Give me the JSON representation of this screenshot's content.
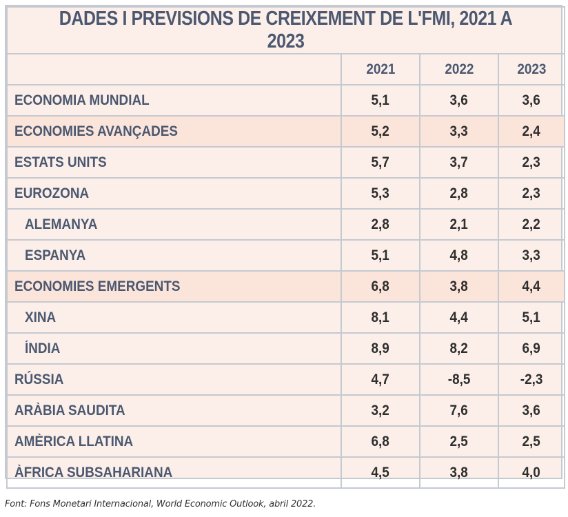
{
  "chart_data": {
    "type": "table",
    "title": "DADES I PREVISIONS DE CREIXEMENT DE L'FMI, 2021 A 2023",
    "columns": [
      "2021",
      "2022",
      "2023"
    ],
    "rows": [
      {
        "label": "ECONOMIA MUNDIAL",
        "indent": false,
        "highlight": false,
        "values": [
          "5,1",
          "3,6",
          "3,6"
        ]
      },
      {
        "label": "ECONOMIES AVANÇADES",
        "indent": false,
        "highlight": true,
        "values": [
          "5,2",
          "3,3",
          "2,4"
        ]
      },
      {
        "label": "ESTATS UNITS",
        "indent": false,
        "highlight": false,
        "values": [
          "5,7",
          "3,7",
          "2,3"
        ]
      },
      {
        "label": "EUROZONA",
        "indent": false,
        "highlight": false,
        "values": [
          "5,3",
          "2,8",
          "2,3"
        ]
      },
      {
        "label": "ALEMANYA",
        "indent": true,
        "highlight": false,
        "values": [
          "2,8",
          "2,1",
          "2,2"
        ]
      },
      {
        "label": "ESPANYA",
        "indent": true,
        "highlight": false,
        "values": [
          "5,1",
          "4,8",
          "3,3"
        ]
      },
      {
        "label": "ECONOMIES EMERGENTS",
        "indent": false,
        "highlight": true,
        "values": [
          "6,8",
          "3,8",
          "4,4"
        ]
      },
      {
        "label": "XINA",
        "indent": true,
        "highlight": false,
        "values": [
          "8,1",
          "4,4",
          "5,1"
        ]
      },
      {
        "label": "ÍNDIA",
        "indent": true,
        "highlight": false,
        "values": [
          "8,9",
          "8,2",
          "6,9"
        ]
      },
      {
        "label": "RÚSSIA",
        "indent": false,
        "highlight": false,
        "values": [
          "4,7",
          "-8,5",
          "-2,3"
        ]
      },
      {
        "label": "ARÀBIA SAUDITA",
        "indent": false,
        "highlight": false,
        "values": [
          "3,2",
          "7,6",
          "3,6"
        ]
      },
      {
        "label": "AMÈRICA LLATINA",
        "indent": false,
        "highlight": false,
        "values": [
          "6,8",
          "2,5",
          "2,5"
        ]
      },
      {
        "label": "ÀFRICA SUBSAHARIANA",
        "indent": false,
        "highlight": false,
        "values": [
          "4,5",
          "3,8",
          "4,0"
        ]
      }
    ],
    "source": "Font: Fons Monetari Internacional, World Economic Outlook, abril 2022."
  },
  "colors": {
    "header_text": "#4b5870",
    "value_text": "#2e2e2e",
    "background": "#fcefe9",
    "highlight_row": "#fbe4da",
    "grid": "#c5c9d0"
  }
}
